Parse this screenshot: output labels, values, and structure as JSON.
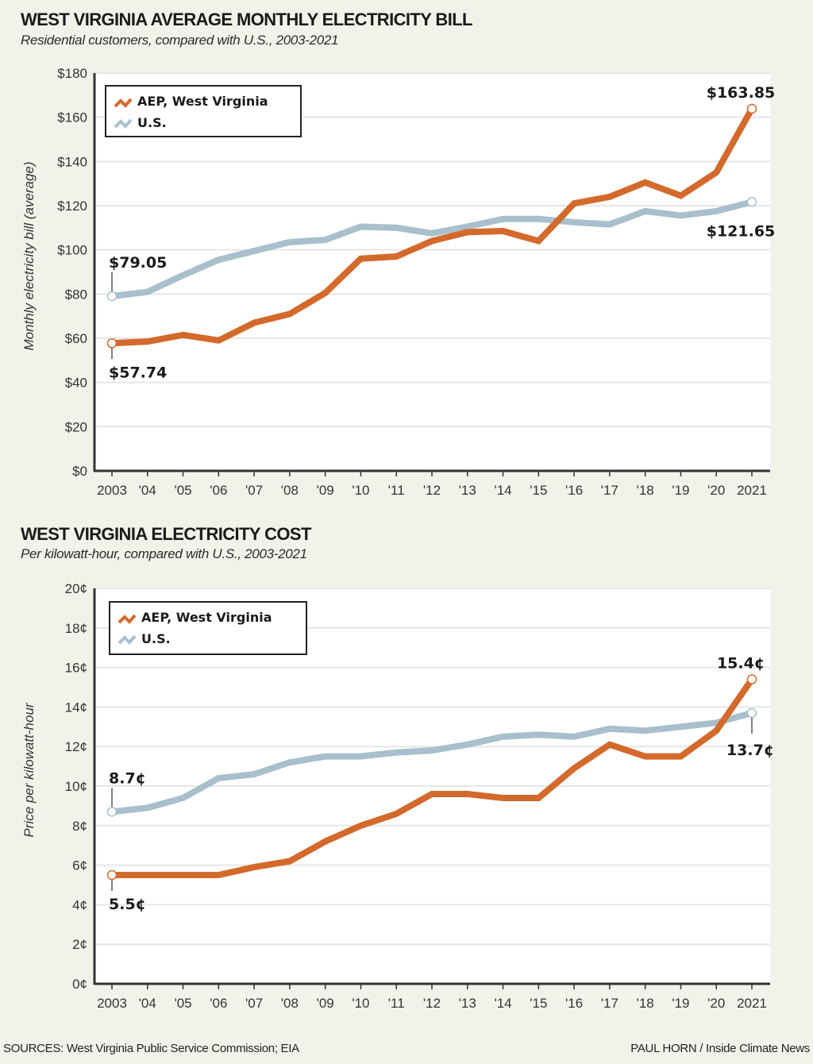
{
  "colors": {
    "wv": "#d4692c",
    "us": "#a9bfcc",
    "background": "#f3f2ea",
    "plot": "#ffffff",
    "grid": "#e6e6e6"
  },
  "legend": {
    "wv_label": "AEP, West Virginia",
    "us_label": "U.S."
  },
  "footer": {
    "sources": "SOURCES: West Virginia Public Service Commission; EIA",
    "credit": "PAUL HORN / Inside Climate News"
  },
  "chart_data": [
    {
      "type": "line",
      "title": "WEST VIRGINIA AVERAGE MONTHLY ELECTRICITY BILL",
      "subtitle": "Residential customers, compared with U.S., 2003-2021",
      "xlabel": "",
      "ylabel": "Monthly electricity bill (average)",
      "x": [
        2003,
        2004,
        2005,
        2006,
        2007,
        2008,
        2009,
        2010,
        2011,
        2012,
        2013,
        2014,
        2015,
        2016,
        2017,
        2018,
        2019,
        2020,
        2021
      ],
      "xtick_labels": [
        "2003",
        "'04",
        "'05",
        "'06",
        "'07",
        "'08",
        "'09",
        "'10",
        "'11",
        "'12",
        "'13",
        "'14",
        "'15",
        "'16",
        "'17",
        "'18",
        "'19",
        "'20",
        "2021"
      ],
      "ylim": [
        0,
        180
      ],
      "yticks": [
        0,
        20,
        40,
        60,
        80,
        100,
        120,
        140,
        160,
        180
      ],
      "ytick_labels": [
        "$0",
        "$20",
        "$40",
        "$60",
        "$80",
        "$100",
        "$120",
        "$140",
        "$160",
        "$180"
      ],
      "grid": true,
      "legend_position": "top-left",
      "series": [
        {
          "name": "AEP, West Virginia",
          "key": "wv",
          "values": [
            57.74,
            58.5,
            61.5,
            59,
            67,
            71,
            80.5,
            96,
            97,
            104,
            108,
            108.5,
            104,
            121,
            124,
            130.5,
            124.5,
            135,
            163.85
          ]
        },
        {
          "name": "U.S.",
          "key": "us",
          "values": [
            79.05,
            81,
            88.5,
            95.5,
            99.5,
            103.5,
            104.5,
            110.5,
            110,
            107.5,
            110.5,
            114,
            114,
            112.5,
            111.5,
            117.5,
            115.5,
            117.5,
            121.65
          ]
        }
      ],
      "annotations": [
        {
          "series": "us",
          "index": 0,
          "text": "$79.05",
          "pos": "above"
        },
        {
          "series": "wv",
          "index": 0,
          "text": "$57.74",
          "pos": "below"
        },
        {
          "series": "wv",
          "index": 18,
          "text": "$163.85",
          "pos": "above"
        },
        {
          "series": "us",
          "index": 18,
          "text": "$121.65",
          "pos": "below"
        }
      ]
    },
    {
      "type": "line",
      "title": "WEST VIRGINIA ELECTRICITY COST",
      "subtitle": "Per kilowatt-hour, compared with U.S., 2003-2021",
      "xlabel": "",
      "ylabel": "Price per kilowatt-hour",
      "x": [
        2003,
        2004,
        2005,
        2006,
        2007,
        2008,
        2009,
        2010,
        2011,
        2012,
        2013,
        2014,
        2015,
        2016,
        2017,
        2018,
        2019,
        2020,
        2021
      ],
      "xtick_labels": [
        "2003",
        "'04",
        "'05",
        "'06",
        "'07",
        "'08",
        "'09",
        "'10",
        "'11",
        "'12",
        "'13",
        "'14",
        "'15",
        "'16",
        "'17",
        "'18",
        "'19",
        "'20",
        "2021"
      ],
      "ylim": [
        0,
        20
      ],
      "yticks": [
        0,
        2,
        4,
        6,
        8,
        10,
        12,
        14,
        16,
        18,
        20
      ],
      "ytick_labels": [
        "0¢",
        "2¢",
        "4¢",
        "6¢",
        "8¢",
        "10¢",
        "12¢",
        "14¢",
        "16¢",
        "18¢",
        "20¢"
      ],
      "grid": true,
      "legend_position": "top-left",
      "series": [
        {
          "name": "AEP, West Virginia",
          "key": "wv",
          "values": [
            5.5,
            5.5,
            5.5,
            5.5,
            5.9,
            6.2,
            7.2,
            8.0,
            8.6,
            9.6,
            9.6,
            9.4,
            9.4,
            10.9,
            12.1,
            11.5,
            11.5,
            12.8,
            15.4
          ]
        },
        {
          "name": "U.S.",
          "key": "us",
          "values": [
            8.7,
            8.9,
            9.4,
            10.4,
            10.6,
            11.2,
            11.5,
            11.5,
            11.7,
            11.8,
            12.1,
            12.5,
            12.6,
            12.5,
            12.9,
            12.8,
            13.0,
            13.2,
            13.7
          ]
        }
      ],
      "annotations": [
        {
          "series": "us",
          "index": 0,
          "text": "8.7¢",
          "pos": "above"
        },
        {
          "series": "wv",
          "index": 0,
          "text": "5.5¢",
          "pos": "below"
        },
        {
          "series": "wv",
          "index": 18,
          "text": "15.4¢",
          "pos": "above"
        },
        {
          "series": "us",
          "index": 18,
          "text": "13.7¢",
          "pos": "below"
        }
      ]
    }
  ]
}
